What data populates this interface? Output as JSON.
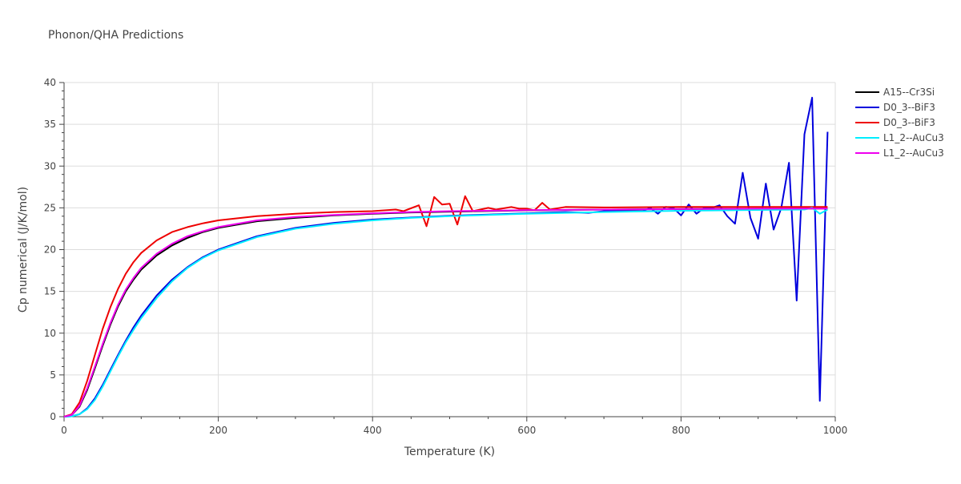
{
  "chart_data": {
    "type": "line",
    "title": "Phonon/QHA Predictions",
    "xlabel": "Temperature (K)",
    "ylabel": "Cp numerical (J/K/mol)",
    "xlim": [
      0,
      1000
    ],
    "ylim": [
      0,
      40
    ],
    "xticks": [
      0,
      200,
      400,
      600,
      800,
      1000
    ],
    "yticks": [
      0,
      5,
      10,
      15,
      20,
      25,
      30,
      35,
      40
    ],
    "grid": true,
    "legend_position": "right",
    "series": [
      {
        "name": "A15--Cr3Si",
        "color": "#000000",
        "x": [
          0,
          10,
          20,
          30,
          40,
          50,
          60,
          70,
          80,
          90,
          100,
          120,
          140,
          160,
          180,
          200,
          250,
          300,
          350,
          400,
          450,
          500,
          600,
          700,
          800,
          900,
          990
        ],
        "y": [
          0,
          0.2,
          1.2,
          3.2,
          5.8,
          8.5,
          11.0,
          13.2,
          15.0,
          16.4,
          17.6,
          19.3,
          20.5,
          21.4,
          22.1,
          22.6,
          23.4,
          23.8,
          24.1,
          24.3,
          24.45,
          24.55,
          24.7,
          24.8,
          24.85,
          24.9,
          24.92
        ]
      },
      {
        "name": "D0_3--BiF3",
        "color": "#0000dd",
        "x": [
          0,
          10,
          20,
          30,
          40,
          50,
          60,
          70,
          80,
          90,
          100,
          120,
          140,
          160,
          180,
          200,
          250,
          300,
          350,
          400,
          450,
          500,
          550,
          600,
          650,
          680,
          700,
          750,
          760,
          770,
          780,
          790,
          800,
          810,
          820,
          830,
          840,
          850,
          860,
          870,
          880,
          890,
          900,
          910,
          920,
          930,
          940,
          950,
          960,
          970,
          980,
          990
        ],
        "y": [
          0,
          0.05,
          0.3,
          1.0,
          2.2,
          3.8,
          5.6,
          7.4,
          9.1,
          10.7,
          12.1,
          14.5,
          16.4,
          17.9,
          19.1,
          20.0,
          21.6,
          22.6,
          23.2,
          23.6,
          23.85,
          24.05,
          24.2,
          24.35,
          24.5,
          24.4,
          24.6,
          24.6,
          25.0,
          24.3,
          25.1,
          25.0,
          24.1,
          25.4,
          24.3,
          25.0,
          25.0,
          25.3,
          24.0,
          23.1,
          29.2,
          23.8,
          21.3,
          27.9,
          22.4,
          25.0,
          30.4,
          13.9,
          33.8,
          38.2,
          1.9,
          34.1
        ]
      },
      {
        "name": "D0_3--BiF3",
        "color": "#ee0000",
        "x": [
          0,
          10,
          20,
          30,
          40,
          50,
          60,
          70,
          80,
          90,
          100,
          120,
          140,
          160,
          180,
          200,
          250,
          300,
          350,
          400,
          430,
          440,
          460,
          470,
          480,
          490,
          500,
          510,
          520,
          530,
          550,
          560,
          580,
          590,
          600,
          610,
          620,
          630,
          650,
          700,
          800,
          900,
          990
        ],
        "y": [
          0,
          0.3,
          1.7,
          4.3,
          7.4,
          10.5,
          13.1,
          15.3,
          17.1,
          18.5,
          19.6,
          21.1,
          22.1,
          22.7,
          23.15,
          23.5,
          24.0,
          24.3,
          24.5,
          24.6,
          24.8,
          24.6,
          25.3,
          22.8,
          26.3,
          25.4,
          25.5,
          23.0,
          26.4,
          24.6,
          25.0,
          24.8,
          25.1,
          24.9,
          24.9,
          24.7,
          25.6,
          24.8,
          25.1,
          25.05,
          25.1,
          25.1,
          25.1
        ]
      },
      {
        "name": "L1_2--AuCu3",
        "color": "#00eeff",
        "x": [
          0,
          10,
          20,
          30,
          40,
          50,
          60,
          70,
          80,
          90,
          100,
          120,
          140,
          160,
          180,
          200,
          250,
          300,
          350,
          400,
          450,
          500,
          600,
          700,
          800,
          900,
          960,
          970,
          980,
          990
        ],
        "y": [
          0,
          0.05,
          0.3,
          0.9,
          2.0,
          3.6,
          5.4,
          7.2,
          8.9,
          10.4,
          11.8,
          14.2,
          16.2,
          17.8,
          19.0,
          19.9,
          21.5,
          22.5,
          23.1,
          23.5,
          23.8,
          24.0,
          24.3,
          24.5,
          24.65,
          24.75,
          24.8,
          25.0,
          24.3,
          24.8
        ]
      },
      {
        "name": "L1_2--AuCu3",
        "color": "#ee00ee",
        "x": [
          0,
          10,
          20,
          30,
          40,
          50,
          60,
          70,
          80,
          90,
          100,
          120,
          140,
          160,
          180,
          200,
          250,
          300,
          350,
          400,
          450,
          500,
          600,
          700,
          800,
          900,
          990
        ],
        "y": [
          0,
          0.2,
          1.3,
          3.4,
          6.0,
          8.7,
          11.2,
          13.4,
          15.2,
          16.6,
          17.8,
          19.5,
          20.7,
          21.6,
          22.2,
          22.7,
          23.5,
          23.9,
          24.15,
          24.35,
          24.5,
          24.6,
          24.72,
          24.8,
          24.85,
          24.9,
          24.92
        ]
      }
    ]
  }
}
